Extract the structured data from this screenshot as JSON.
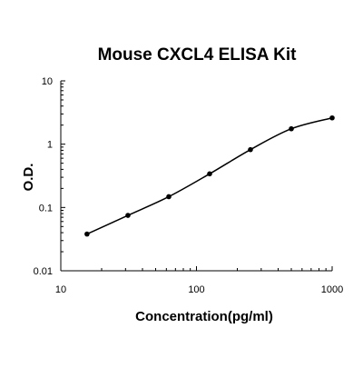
{
  "chart_data": {
    "type": "line",
    "title": "Mouse CXCL4 ELISA Kit",
    "xlabel": "Concentration(pg/ml)",
    "ylabel": "O.D.",
    "x_scale": "log",
    "y_scale": "log",
    "xlim": [
      10,
      1000
    ],
    "ylim": [
      0.01,
      10
    ],
    "x_ticks": [
      "10",
      "100",
      "1000"
    ],
    "y_ticks": [
      "0.01",
      "0.1",
      "1",
      "10"
    ],
    "grid": false,
    "legend": "none",
    "points": [
      {
        "x": 15.6,
        "y": 0.038
      },
      {
        "x": 31.25,
        "y": 0.075
      },
      {
        "x": 62.5,
        "y": 0.148
      },
      {
        "x": 125,
        "y": 0.34
      },
      {
        "x": 250,
        "y": 0.82
      },
      {
        "x": 500,
        "y": 1.75
      },
      {
        "x": 1000,
        "y": 2.6
      }
    ],
    "colors": {
      "line": "#000000",
      "marker": "#000000",
      "axis": "#000000"
    }
  }
}
